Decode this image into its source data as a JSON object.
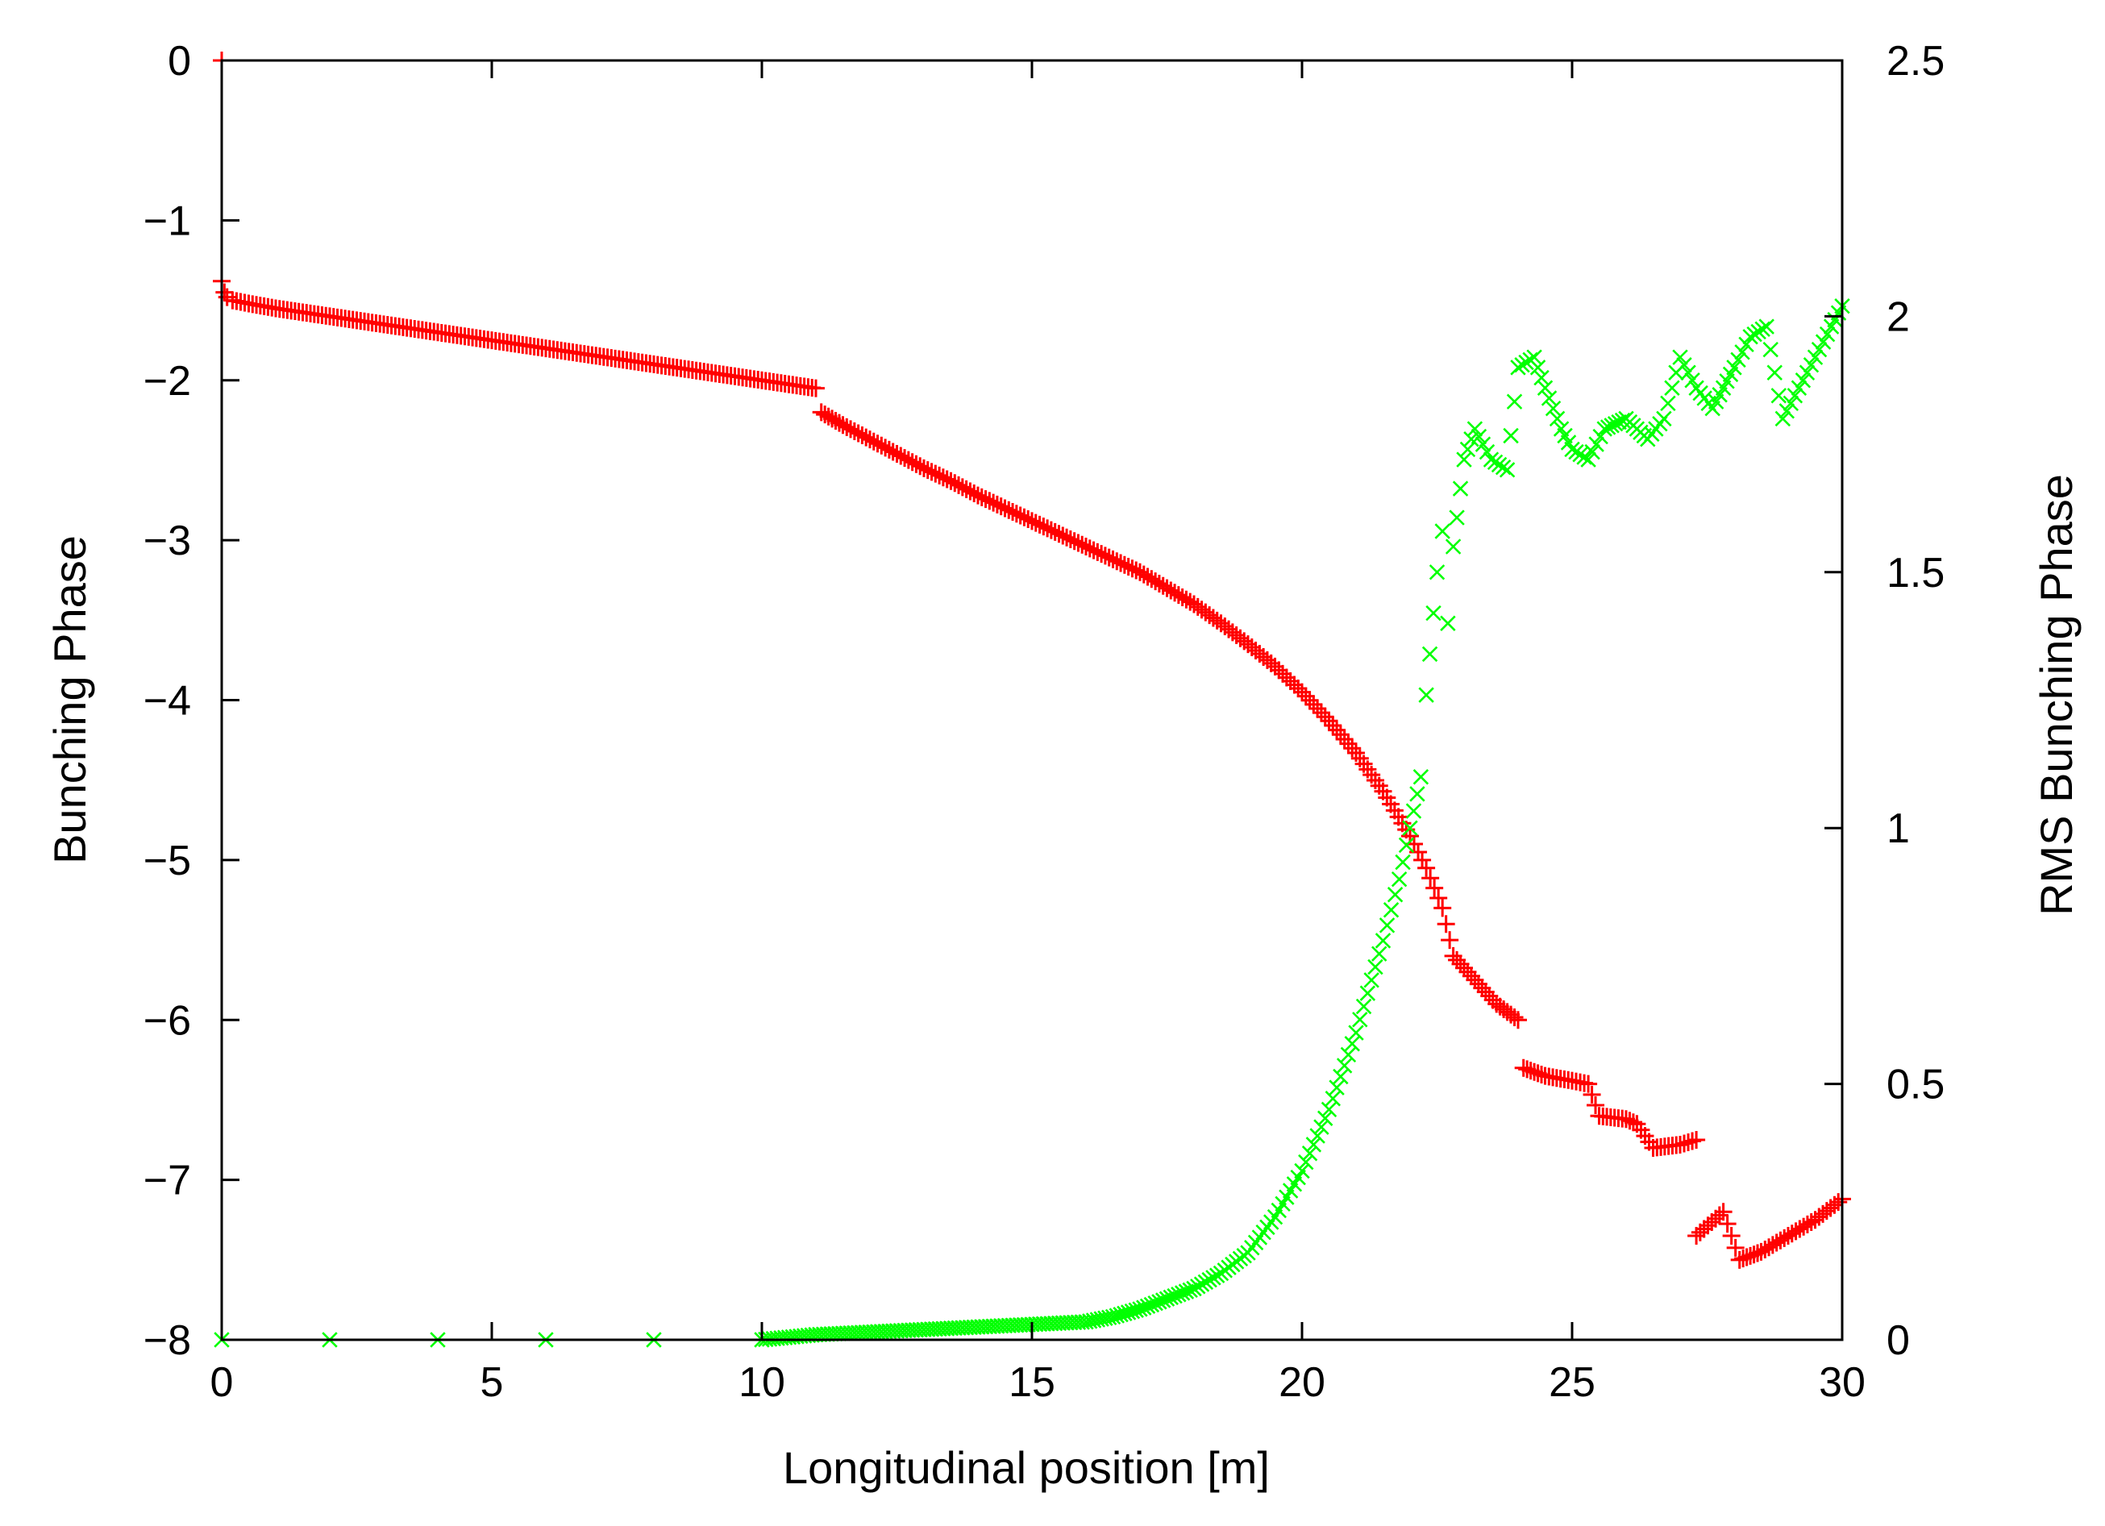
{
  "chart_data": {
    "type": "scatter",
    "title": "",
    "xlabel": "Longitudinal position [m]",
    "ylabel": "Bunching Phase",
    "y2label": "RMS Bunching Phase",
    "xlim": [
      0,
      30
    ],
    "ylim": [
      -8,
      0
    ],
    "y2lim": [
      0,
      2.5
    ],
    "grid": false,
    "legend": "none",
    "x_ticks": [
      0,
      5,
      10,
      15,
      20,
      25,
      30
    ],
    "x_tick_labels": [
      "0",
      "5",
      "10",
      "15",
      "20",
      "25",
      "30"
    ],
    "y_ticks": [
      0,
      -1,
      -2,
      -3,
      -4,
      -5,
      -6,
      -7,
      -8
    ],
    "y_tick_labels": [
      "0",
      "−1",
      "−2",
      "−3",
      "−4",
      "−5",
      "−6",
      "−7",
      "−8"
    ],
    "y2_ticks": [
      2.5,
      2,
      1.5,
      1,
      0.5,
      0
    ],
    "y2_tick_labels": [
      "2.5",
      "2",
      "1.5",
      "1",
      "0.5",
      "0"
    ],
    "series": [
      {
        "name": "Bunching Phase",
        "axis": "left",
        "marker": "+",
        "color": "#ff0000",
        "points": [
          [
            0.0,
            0.0
          ],
          [
            0.0,
            -1.38
          ],
          [
            0.05,
            -1.45
          ],
          [
            0.1,
            -1.48
          ],
          [
            0.2,
            -1.5
          ],
          [
            0.5,
            -1.52
          ],
          [
            1,
            -1.55
          ],
          [
            2,
            -1.6
          ],
          [
            3,
            -1.65
          ],
          [
            4,
            -1.7
          ],
          [
            5,
            -1.75
          ],
          [
            6,
            -1.8
          ],
          [
            7,
            -1.85
          ],
          [
            8,
            -1.9
          ],
          [
            9,
            -1.95
          ],
          [
            10,
            -2.0
          ],
          [
            11,
            -2.05
          ],
          [
            11.1,
            -2.2
          ],
          [
            11.5,
            -2.28
          ],
          [
            12,
            -2.37
          ],
          [
            12.5,
            -2.46
          ],
          [
            13,
            -2.55
          ],
          [
            13.5,
            -2.63
          ],
          [
            14,
            -2.72
          ],
          [
            14.5,
            -2.8
          ],
          [
            15,
            -2.88
          ],
          [
            15.5,
            -2.96
          ],
          [
            16,
            -3.04
          ],
          [
            16.5,
            -3.12
          ],
          [
            17,
            -3.2
          ],
          [
            17.5,
            -3.3
          ],
          [
            18,
            -3.4
          ],
          [
            18.5,
            -3.52
          ],
          [
            19,
            -3.65
          ],
          [
            19.5,
            -3.79
          ],
          [
            20,
            -3.95
          ],
          [
            20.5,
            -4.13
          ],
          [
            21,
            -4.33
          ],
          [
            21.5,
            -4.57
          ],
          [
            22,
            -4.85
          ],
          [
            22.3,
            -5.05
          ],
          [
            22.6,
            -5.3
          ],
          [
            22.8,
            -5.6
          ],
          [
            23.2,
            -5.75
          ],
          [
            23.6,
            -5.9
          ],
          [
            24.0,
            -6.0
          ],
          [
            24.1,
            -6.3
          ],
          [
            24.5,
            -6.35
          ],
          [
            25.0,
            -6.38
          ],
          [
            25.3,
            -6.4
          ],
          [
            25.5,
            -6.6
          ],
          [
            26.0,
            -6.62
          ],
          [
            26.2,
            -6.65
          ],
          [
            26.5,
            -6.8
          ],
          [
            27.0,
            -6.78
          ],
          [
            27.3,
            -6.75
          ],
          [
            27.3,
            -7.35
          ],
          [
            27.8,
            -7.2
          ],
          [
            28.1,
            -7.5
          ],
          [
            28.5,
            -7.45
          ],
          [
            29,
            -7.35
          ],
          [
            29.5,
            -7.25
          ],
          [
            30,
            -7.12
          ]
        ]
      },
      {
        "name": "RMS Bunching Phase",
        "axis": "right",
        "marker": "x",
        "color": "#00ff00",
        "points": [
          [
            0,
            0.0
          ],
          [
            2,
            0.0
          ],
          [
            4,
            0.0
          ],
          [
            6,
            0.0
          ],
          [
            8,
            0.0
          ],
          [
            10,
            0.0
          ],
          [
            11,
            0.01
          ],
          [
            12,
            0.015
          ],
          [
            13,
            0.02
          ],
          [
            14,
            0.025
          ],
          [
            15,
            0.03
          ],
          [
            16,
            0.035
          ],
          [
            16.5,
            0.045
          ],
          [
            17,
            0.06
          ],
          [
            17.5,
            0.08
          ],
          [
            18,
            0.1
          ],
          [
            18.5,
            0.13
          ],
          [
            19,
            0.17
          ],
          [
            19.5,
            0.24
          ],
          [
            20,
            0.33
          ],
          [
            20.5,
            0.45
          ],
          [
            21,
            0.6
          ],
          [
            21.5,
            0.78
          ],
          [
            21.8,
            0.9
          ],
          [
            22,
            1.0
          ],
          [
            22.2,
            1.1
          ],
          [
            22.3,
            1.26
          ],
          [
            22.5,
            1.5
          ],
          [
            22.6,
            1.58
          ],
          [
            22.7,
            1.4
          ],
          [
            22.8,
            1.55
          ],
          [
            23,
            1.72
          ],
          [
            23.2,
            1.78
          ],
          [
            23.5,
            1.72
          ],
          [
            23.8,
            1.7
          ],
          [
            24,
            1.9
          ],
          [
            24.3,
            1.92
          ],
          [
            24.5,
            1.86
          ],
          [
            24.8,
            1.78
          ],
          [
            25,
            1.74
          ],
          [
            25.3,
            1.72
          ],
          [
            25.6,
            1.78
          ],
          [
            26,
            1.8
          ],
          [
            26.4,
            1.76
          ],
          [
            26.7,
            1.8
          ],
          [
            27,
            1.92
          ],
          [
            27.3,
            1.86
          ],
          [
            27.6,
            1.82
          ],
          [
            28,
            1.9
          ],
          [
            28.3,
            1.96
          ],
          [
            28.6,
            1.98
          ],
          [
            28.9,
            1.8
          ],
          [
            29.2,
            1.86
          ],
          [
            29.5,
            1.92
          ],
          [
            29.8,
            1.98
          ],
          [
            30,
            2.02
          ]
        ]
      }
    ]
  }
}
